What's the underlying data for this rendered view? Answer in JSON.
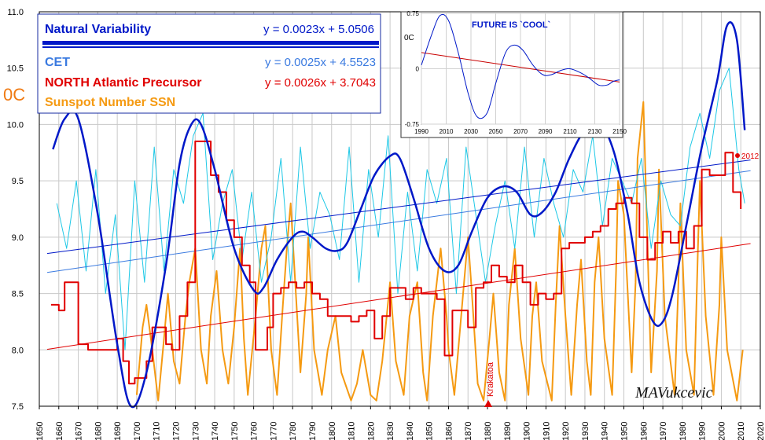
{
  "chart_data": [
    {
      "type": "line",
      "ylabel": "0C",
      "x_ticks": [
        1650,
        1660,
        1670,
        1680,
        1690,
        1700,
        1710,
        1720,
        1730,
        1740,
        1750,
        1760,
        1770,
        1780,
        1790,
        1800,
        1810,
        1820,
        1830,
        1840,
        1850,
        1860,
        1870,
        1880,
        1890,
        1900,
        1910,
        1920,
        1930,
        1940,
        1950,
        1960,
        1970,
        1980,
        1990,
        2000,
        2010,
        2020
      ],
      "xlim": [
        1650,
        2020
      ],
      "y_ticks": [
        "7.5",
        "8.0",
        "8.5",
        "9.0",
        "9.5",
        "10.0",
        "10.5",
        "11.0"
      ],
      "ylim": [
        7.5,
        11.0
      ],
      "grid": true,
      "legend_position": "top-left",
      "legend": [
        {
          "name": "Natural Variability",
          "equation": "y = 0.0023x + 5.0506",
          "color": "#0018c8"
        },
        {
          "name": "CET",
          "equation": "y = 0.0025x + 4.5523",
          "color": "#3a7ae0"
        },
        {
          "name": "NORTH Atlantic Precursor",
          "equation": "y = 0.0026x + 3.7043",
          "color": "#e00000"
        },
        {
          "name": "Sunspot Number SSN",
          "equation": "",
          "color": "#f59a12"
        }
      ],
      "annotations": {
        "krakatoa": "Krakatoa",
        "krakatoa_year": 1883,
        "year_2012": "2012",
        "signature": "MAVukcevic"
      },
      "series": [
        {
          "name": "Natural Variability",
          "color": "#0018c8",
          "x": [
            1657,
            1663,
            1670,
            1680,
            1690,
            1697,
            1705,
            1715,
            1722,
            1728,
            1733,
            1740,
            1750,
            1760,
            1765,
            1772,
            1780,
            1785,
            1790,
            1797,
            1803,
            1808,
            1815,
            1822,
            1830,
            1835,
            1842,
            1850,
            1858,
            1865,
            1872,
            1880,
            1888,
            1895,
            1902,
            1908,
            1915,
            1922,
            1930,
            1938,
            1945,
            1952,
            1958,
            1965,
            1970,
            1975,
            1982,
            1990,
            1998,
            2003,
            2008,
            2012
          ],
          "y": [
            9.78,
            10.05,
            10.05,
            9.2,
            8.05,
            7.5,
            7.8,
            8.75,
            9.65,
            10.0,
            10.0,
            9.6,
            8.9,
            8.53,
            8.55,
            8.8,
            9.0,
            9.05,
            9.0,
            8.9,
            8.88,
            8.95,
            9.25,
            9.55,
            9.72,
            9.7,
            9.35,
            8.9,
            8.7,
            8.75,
            9.05,
            9.35,
            9.45,
            9.4,
            9.2,
            9.22,
            9.4,
            9.7,
            9.95,
            10.0,
            9.75,
            9.2,
            8.6,
            8.25,
            8.25,
            8.5,
            9.1,
            9.8,
            10.4,
            10.88,
            10.75,
            9.95
          ]
        },
        {
          "name": "NORTH Atlantic Precursor",
          "color": "#e00000",
          "x": [
            1656,
            1660,
            1663,
            1667,
            1670,
            1675,
            1680,
            1685,
            1690,
            1693,
            1696,
            1699,
            1702,
            1705,
            1708,
            1711,
            1715,
            1718,
            1722,
            1726,
            1730,
            1734,
            1738,
            1742,
            1746,
            1750,
            1754,
            1758,
            1761,
            1764,
            1767,
            1770,
            1774,
            1778,
            1782,
            1786,
            1790,
            1794,
            1798,
            1802,
            1806,
            1810,
            1814,
            1818,
            1822,
            1826,
            1830,
            1834,
            1838,
            1842,
            1846,
            1850,
            1854,
            1858,
            1862,
            1866,
            1870,
            1874,
            1878,
            1882,
            1886,
            1890,
            1894,
            1898,
            1902,
            1906,
            1910,
            1914,
            1918,
            1922,
            1926,
            1930,
            1934,
            1938,
            1942,
            1946,
            1950,
            1954,
            1958,
            1962,
            1966,
            1970,
            1974,
            1978,
            1982,
            1986,
            1990,
            1994,
            1998,
            2002,
            2006,
            2010
          ],
          "y": [
            8.4,
            8.35,
            8.6,
            8.6,
            8.05,
            8.0,
            8.0,
            8.0,
            8.1,
            7.9,
            7.7,
            7.75,
            7.75,
            7.9,
            8.2,
            8.2,
            8.05,
            8.0,
            8.3,
            8.6,
            9.85,
            9.85,
            9.55,
            9.4,
            9.15,
            9.0,
            8.75,
            8.6,
            8.0,
            8.0,
            8.2,
            8.5,
            8.55,
            8.6,
            8.55,
            8.6,
            8.5,
            8.45,
            8.3,
            8.3,
            8.3,
            8.25,
            8.3,
            8.35,
            8.1,
            8.3,
            8.55,
            8.55,
            8.45,
            8.55,
            8.5,
            8.5,
            8.45,
            7.95,
            8.35,
            8.35,
            8.2,
            8.55,
            8.6,
            8.75,
            8.65,
            8.6,
            8.75,
            8.6,
            8.4,
            8.5,
            8.45,
            8.5,
            8.9,
            8.95,
            8.95,
            9.0,
            9.05,
            9.1,
            9.25,
            9.3,
            9.35,
            9.3,
            9.0,
            8.8,
            8.95,
            9.05,
            8.95,
            9.05,
            8.9,
            9.1,
            9.6,
            9.55,
            9.55,
            9.75,
            9.4,
            9.25
          ]
        },
        {
          "name": "CET",
          "color": "#1ec8e6",
          "x": [
            1659,
            1664,
            1669,
            1674,
            1679,
            1684,
            1689,
            1694,
            1699,
            1704,
            1709,
            1714,
            1719,
            1724,
            1729,
            1734,
            1739,
            1744,
            1749,
            1754,
            1759,
            1764,
            1769,
            1774,
            1779,
            1784,
            1789,
            1794,
            1799,
            1804,
            1809,
            1814,
            1819,
            1824,
            1829,
            1834,
            1839,
            1844,
            1849,
            1854,
            1859,
            1864,
            1869,
            1874,
            1879,
            1884,
            1889,
            1894,
            1899,
            1904,
            1909,
            1914,
            1919,
            1924,
            1929,
            1934,
            1939,
            1944,
            1949,
            1954,
            1959,
            1964,
            1969,
            1974,
            1979,
            1984,
            1989,
            1994,
            1999,
            2004,
            2009,
            2012
          ],
          "y": [
            9.3,
            8.9,
            9.5,
            8.7,
            9.6,
            8.5,
            9.2,
            8.0,
            9.5,
            8.6,
            9.8,
            8.7,
            9.6,
            9.3,
            9.9,
            10.1,
            8.8,
            9.3,
            9.6,
            8.8,
            9.4,
            8.6,
            9.0,
            9.7,
            8.6,
            9.8,
            8.9,
            9.4,
            9.2,
            8.8,
            9.8,
            8.6,
            9.6,
            9.0,
            9.9,
            8.5,
            9.4,
            8.7,
            9.6,
            9.3,
            9.7,
            8.5,
            9.8,
            9.2,
            8.6,
            9.1,
            9.5,
            8.9,
            9.8,
            9.0,
            9.7,
            9.3,
            9.0,
            9.6,
            9.4,
            9.9,
            9.1,
            9.7,
            9.5,
            9.3,
            9.7,
            8.9,
            9.5,
            9.2,
            9.1,
            9.8,
            10.1,
            9.7,
            10.3,
            10.5,
            9.6,
            9.3
          ]
        },
        {
          "name": "Sunspot Number SSN",
          "color": "#f59a12",
          "x": [
            1700,
            1703,
            1705,
            1708,
            1711,
            1714,
            1716,
            1719,
            1722,
            1725,
            1727,
            1730,
            1733,
            1736,
            1738,
            1741,
            1744,
            1747,
            1750,
            1753,
            1755,
            1757,
            1761,
            1764,
            1766,
            1769,
            1772,
            1775,
            1777,
            1779,
            1784,
            1787,
            1788,
            1791,
            1795,
            1798,
            1802,
            1805,
            1810,
            1813,
            1816,
            1820,
            1823,
            1826,
            1830,
            1833,
            1837,
            1840,
            1844,
            1847,
            1849,
            1852,
            1856,
            1859,
            1860,
            1863,
            1867,
            1870,
            1872,
            1875,
            1878,
            1881,
            1883,
            1886,
            1889,
            1891,
            1894,
            1897,
            1901,
            1903,
            1905,
            1908,
            1913,
            1915,
            1917,
            1920,
            1923,
            1926,
            1928,
            1931,
            1933,
            1935,
            1937,
            1940,
            1944,
            1946,
            1947,
            1950,
            1954,
            1956,
            1957,
            1960,
            1964,
            1967,
            1968,
            1971,
            1976,
            1978,
            1979,
            1982,
            1986,
            1988,
            1989,
            1992,
            1996,
            1999,
            2000,
            2003,
            2008,
            2011
          ],
          "y": [
            7.6,
            8.2,
            8.4,
            8.0,
            7.55,
            8.1,
            8.5,
            7.9,
            7.7,
            8.3,
            8.6,
            8.9,
            8.0,
            7.7,
            8.3,
            8.7,
            8.0,
            7.7,
            8.2,
            8.9,
            8.1,
            7.6,
            8.3,
            8.9,
            9.1,
            8.0,
            7.6,
            8.4,
            8.9,
            9.3,
            7.8,
            8.5,
            9.0,
            8.0,
            7.6,
            8.0,
            8.3,
            7.8,
            7.55,
            7.7,
            8.0,
            7.6,
            7.55,
            7.9,
            8.6,
            7.9,
            7.6,
            8.3,
            8.6,
            7.8,
            7.55,
            8.3,
            8.9,
            8.3,
            8.0,
            7.6,
            8.4,
            9.0,
            8.5,
            7.7,
            7.55,
            8.1,
            8.5,
            7.8,
            7.55,
            8.4,
            8.9,
            8.1,
            7.6,
            8.3,
            8.6,
            7.9,
            7.55,
            8.4,
            9.1,
            8.3,
            7.6,
            8.4,
            8.8,
            7.9,
            7.6,
            8.6,
            9.0,
            8.1,
            7.6,
            8.7,
            9.5,
            9.2,
            7.8,
            8.6,
            9.7,
            10.2,
            7.8,
            8.7,
            9.6,
            8.3,
            7.6,
            8.6,
            9.3,
            8.0,
            7.6,
            8.9,
            9.5,
            8.3,
            7.6,
            8.4,
            9.0,
            8.0,
            7.55,
            8.0
          ]
        }
      ],
      "trendlines": [
        {
          "name": "Natural Variability",
          "slope": 0.0023,
          "intercept": 5.0506,
          "color": "#0018c8"
        },
        {
          "name": "CET",
          "slope": 0.0025,
          "intercept": 4.5523,
          "color": "#3a7ae0"
        },
        {
          "name": "NORTH Atlantic Precursor",
          "slope": 0.0026,
          "intercept": 3.7043,
          "color": "#e00000"
        }
      ]
    },
    {
      "type": "line",
      "title": "FUTURE IS  `COOL`",
      "ylabel": "0C",
      "x_ticks": [
        1990,
        2010,
        2030,
        2050,
        2070,
        2090,
        2110,
        2130,
        2150
      ],
      "xlim": [
        1990,
        2150
      ],
      "y_ticks": [
        "0.75",
        "0",
        "-0.75"
      ],
      "ylim": [
        -0.75,
        0.75
      ],
      "series": [
        {
          "name": "Natural Variability",
          "color": "#0018c8",
          "x": [
            1990,
            1998,
            2005,
            2012,
            2020,
            2028,
            2035,
            2043,
            2050,
            2058,
            2065,
            2072,
            2080,
            2088,
            2095,
            2103,
            2110,
            2118,
            2125,
            2133,
            2140,
            2145,
            2150
          ],
          "y": [
            0.05,
            0.45,
            0.72,
            0.65,
            0.2,
            -0.35,
            -0.65,
            -0.6,
            -0.2,
            0.22,
            0.32,
            0.25,
            0.05,
            -0.08,
            -0.08,
            -0.02,
            0.0,
            -0.05,
            -0.12,
            -0.22,
            -0.22,
            -0.17,
            -0.15
          ]
        }
      ],
      "trendline": {
        "x": [
          1990,
          2150
        ],
        "y": [
          0.22,
          -0.18
        ],
        "color": "#c80000"
      }
    }
  ]
}
